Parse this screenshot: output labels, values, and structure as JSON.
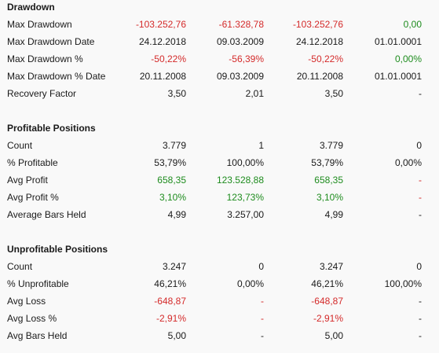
{
  "sections": [
    {
      "title": "Drawdown",
      "rows": [
        {
          "label": "Max Drawdown",
          "cells": [
            {
              "text": "-103.252,76",
              "color": "#d42a2a"
            },
            {
              "text": "-61.328,78",
              "color": "#d42a2a"
            },
            {
              "text": "-103.252,76",
              "color": "#d42a2a"
            },
            {
              "text": "0,00",
              "color": "#1e8c1e"
            }
          ]
        },
        {
          "label": "Max Drawdown Date",
          "cells": [
            {
              "text": "24.12.2018",
              "color": "#1a1a1a"
            },
            {
              "text": "09.03.2009",
              "color": "#1a1a1a"
            },
            {
              "text": "24.12.2018",
              "color": "#1a1a1a"
            },
            {
              "text": "01.01.0001",
              "color": "#1a1a1a"
            }
          ]
        },
        {
          "label": "Max Drawdown %",
          "cells": [
            {
              "text": "-50,22%",
              "color": "#d42a2a"
            },
            {
              "text": "-56,39%",
              "color": "#d42a2a"
            },
            {
              "text": "-50,22%",
              "color": "#d42a2a"
            },
            {
              "text": "0,00%",
              "color": "#1e8c1e"
            }
          ]
        },
        {
          "label": "Max Drawdown % Date",
          "cells": [
            {
              "text": "20.11.2008",
              "color": "#1a1a1a"
            },
            {
              "text": "09.03.2009",
              "color": "#1a1a1a"
            },
            {
              "text": "20.11.2008",
              "color": "#1a1a1a"
            },
            {
              "text": "01.01.0001",
              "color": "#1a1a1a"
            }
          ]
        },
        {
          "label": "Recovery Factor",
          "cells": [
            {
              "text": "3,50",
              "color": "#1a1a1a"
            },
            {
              "text": "2,01",
              "color": "#1a1a1a"
            },
            {
              "text": "3,50",
              "color": "#1a1a1a"
            },
            {
              "text": "-",
              "color": "#1a1a1a"
            }
          ]
        }
      ]
    },
    {
      "title": "Profitable Positions",
      "rows": [
        {
          "label": "Count",
          "cells": [
            {
              "text": "3.779",
              "color": "#1a1a1a"
            },
            {
              "text": "1",
              "color": "#1a1a1a"
            },
            {
              "text": "3.779",
              "color": "#1a1a1a"
            },
            {
              "text": "0",
              "color": "#1a1a1a"
            }
          ]
        },
        {
          "label": "% Profitable",
          "cells": [
            {
              "text": "53,79%",
              "color": "#1a1a1a"
            },
            {
              "text": "100,00%",
              "color": "#1a1a1a"
            },
            {
              "text": "53,79%",
              "color": "#1a1a1a"
            },
            {
              "text": "0,00%",
              "color": "#1a1a1a"
            }
          ]
        },
        {
          "label": "Avg Profit",
          "cells": [
            {
              "text": "658,35",
              "color": "#1e8c1e"
            },
            {
              "text": "123.528,88",
              "color": "#1e8c1e"
            },
            {
              "text": "658,35",
              "color": "#1e8c1e"
            },
            {
              "text": "-",
              "color": "#d42a2a"
            }
          ]
        },
        {
          "label": "Avg Profit %",
          "cells": [
            {
              "text": "3,10%",
              "color": "#1e8c1e"
            },
            {
              "text": "123,73%",
              "color": "#1e8c1e"
            },
            {
              "text": "3,10%",
              "color": "#1e8c1e"
            },
            {
              "text": "-",
              "color": "#d42a2a"
            }
          ]
        },
        {
          "label": "Average Bars Held",
          "cells": [
            {
              "text": "4,99",
              "color": "#1a1a1a"
            },
            {
              "text": "3.257,00",
              "color": "#1a1a1a"
            },
            {
              "text": "4,99",
              "color": "#1a1a1a"
            },
            {
              "text": "-",
              "color": "#1a1a1a"
            }
          ]
        }
      ]
    },
    {
      "title": "Unprofitable Positions",
      "rows": [
        {
          "label": "Count",
          "cells": [
            {
              "text": "3.247",
              "color": "#1a1a1a"
            },
            {
              "text": "0",
              "color": "#1a1a1a"
            },
            {
              "text": "3.247",
              "color": "#1a1a1a"
            },
            {
              "text": "0",
              "color": "#1a1a1a"
            }
          ]
        },
        {
          "label": "% Unprofitable",
          "cells": [
            {
              "text": "46,21%",
              "color": "#1a1a1a"
            },
            {
              "text": "0,00%",
              "color": "#1a1a1a"
            },
            {
              "text": "46,21%",
              "color": "#1a1a1a"
            },
            {
              "text": "100,00%",
              "color": "#1a1a1a"
            }
          ]
        },
        {
          "label": "Avg Loss",
          "cells": [
            {
              "text": "-648,87",
              "color": "#d42a2a"
            },
            {
              "text": "-",
              "color": "#d42a2a"
            },
            {
              "text": "-648,87",
              "color": "#d42a2a"
            },
            {
              "text": "-",
              "color": "#1a1a1a"
            }
          ]
        },
        {
          "label": "Avg Loss %",
          "cells": [
            {
              "text": "-2,91%",
              "color": "#d42a2a"
            },
            {
              "text": "-",
              "color": "#d42a2a"
            },
            {
              "text": "-2,91%",
              "color": "#d42a2a"
            },
            {
              "text": "-",
              "color": "#1a1a1a"
            }
          ]
        },
        {
          "label": "Avg Bars Held",
          "cells": [
            {
              "text": "5,00",
              "color": "#1a1a1a"
            },
            {
              "text": "-",
              "color": "#1a1a1a"
            },
            {
              "text": "5,00",
              "color": "#1a1a1a"
            },
            {
              "text": "-",
              "color": "#1a1a1a"
            }
          ]
        }
      ]
    }
  ]
}
